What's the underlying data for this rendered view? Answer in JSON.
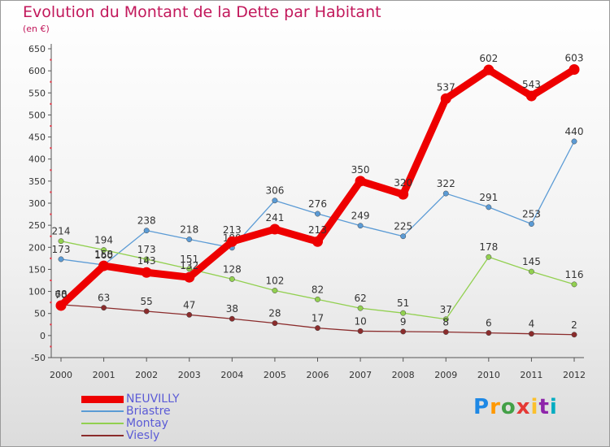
{
  "title": "Evolution du Montant de la Dette par Habitant",
  "subtitle": "(en €)",
  "logo": {
    "text": "Proxiti",
    "colors": [
      "#1e88e5",
      "#ff9800",
      "#43a047",
      "#e53935",
      "#fbc02d",
      "#8e24aa",
      "#00acc1"
    ]
  },
  "chart_data": {
    "type": "line",
    "x": [
      "2000",
      "2001",
      "2002",
      "2003",
      "2004",
      "2005",
      "2006",
      "2007",
      "2008",
      "2009",
      "2010",
      "2011",
      "2012"
    ],
    "ylim": [
      -50,
      650
    ],
    "yticks": [
      650,
      600,
      550,
      500,
      450,
      400,
      350,
      300,
      250,
      200,
      150,
      100,
      50,
      0,
      -50
    ],
    "ytick_labels": [
      "650",
      "600",
      "550",
      "500",
      "450",
      "400",
      "350",
      "300",
      "250",
      "200",
      "150",
      "100",
      "50",
      "0",
      "-50"
    ],
    "grid": false,
    "legend_position": "bottom-left",
    "series": [
      {
        "name": "Briastre",
        "color": "#5b9bd5",
        "values": [
          173,
          160,
          238,
          218,
          199,
          306,
          276,
          249,
          225,
          322,
          291,
          253,
          440
        ],
        "labels": [
          "173",
          "160",
          "238",
          "218",
          "199",
          "306",
          "276",
          "249",
          "225",
          "322",
          "291",
          "253",
          "440"
        ]
      },
      {
        "name": "Montay",
        "color": "#92d050",
        "values": [
          214,
          194,
          173,
          151,
          128,
          102,
          82,
          62,
          51,
          37,
          178,
          145,
          116
        ],
        "labels": [
          "214",
          "194",
          "173",
          "151",
          "128",
          "102",
          "82",
          "62",
          "51",
          "37",
          "178",
          "145",
          "116"
        ]
      },
      {
        "name": "Viesly",
        "color": "#8b2c2c",
        "values": [
          70,
          63,
          55,
          47,
          38,
          28,
          17,
          10,
          9,
          8,
          6,
          4,
          2
        ],
        "labels": [
          "70",
          "63",
          "55",
          "47",
          "38",
          "28",
          "17",
          "10",
          "9",
          "8",
          "6",
          "4",
          "2"
        ]
      },
      {
        "name": "NEUVILLY",
        "color": "#ee0000",
        "values": [
          68,
          158,
          143,
          132,
          213,
          241,
          213,
          350,
          320,
          537,
          602,
          543,
          603
        ],
        "labels": [
          "68",
          "158",
          "143",
          "132",
          "213",
          "241",
          "213",
          "350",
          "320",
          "537",
          "602",
          "543",
          "603"
        ]
      }
    ],
    "legend": [
      {
        "name": "NEUVILLY",
        "color": "#ee0000",
        "thick": true
      },
      {
        "name": "Briastre",
        "color": "#5b9bd5",
        "thick": false
      },
      {
        "name": "Montay",
        "color": "#92d050",
        "thick": false
      },
      {
        "name": "Viesly",
        "color": "#8b2c2c",
        "thick": false
      }
    ]
  }
}
